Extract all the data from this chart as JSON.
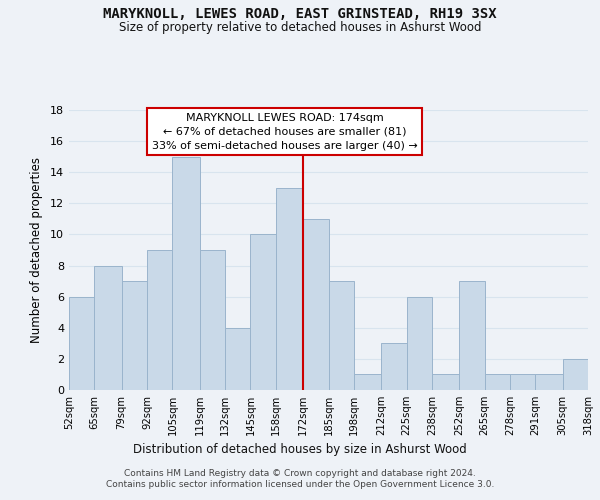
{
  "title": "MARYKNOLL, LEWES ROAD, EAST GRINSTEAD, RH19 3SX",
  "subtitle": "Size of property relative to detached houses in Ashurst Wood",
  "xlabel": "Distribution of detached houses by size in Ashurst Wood",
  "ylabel": "Number of detached properties",
  "bin_edges": [
    52,
    65,
    79,
    92,
    105,
    119,
    132,
    145,
    158,
    172,
    185,
    198,
    212,
    225,
    238,
    252,
    265,
    278,
    291,
    305,
    318
  ],
  "bar_heights": [
    6,
    8,
    7,
    9,
    15,
    9,
    4,
    10,
    13,
    11,
    7,
    1,
    3,
    6,
    1,
    7,
    1,
    1,
    1,
    2
  ],
  "bar_color": "#c9d9e8",
  "bar_edgecolor": "#9ab4cc",
  "grid_color": "#d8e4ee",
  "background_color": "#eef2f7",
  "axes_facecolor": "#eef2f7",
  "vline_x": 172,
  "vline_color": "#cc0000",
  "annotation_title": "MARYKNOLL LEWES ROAD: 174sqm",
  "annotation_line1": "← 67% of detached houses are smaller (81)",
  "annotation_line2": "33% of semi-detached houses are larger (40) →",
  "annotation_box_edgecolor": "#cc0000",
  "annotation_box_facecolor": "#ffffff",
  "ylim": [
    0,
    18
  ],
  "yticks": [
    0,
    2,
    4,
    6,
    8,
    10,
    12,
    14,
    16,
    18
  ],
  "footer1": "Contains HM Land Registry data © Crown copyright and database right 2024.",
  "footer2": "Contains public sector information licensed under the Open Government Licence 3.0."
}
